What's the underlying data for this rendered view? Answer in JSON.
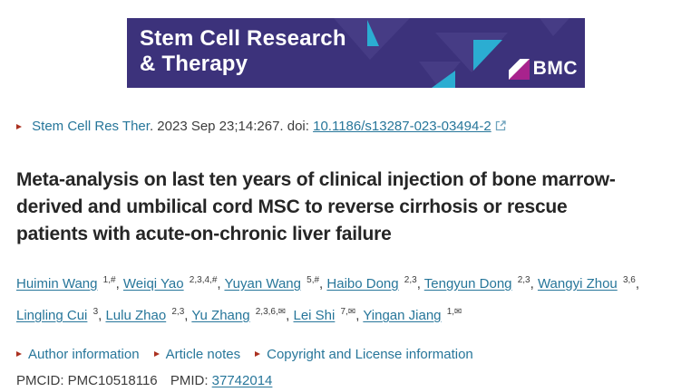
{
  "banner": {
    "journal_title_line1": "Stem Cell Research",
    "journal_title_line2": "& Therapy",
    "bmc_label": "BMC"
  },
  "citation": {
    "journal_link": "Stem Cell Res Ther",
    "meta": ". 2023 Sep 23;14:267. doi: ",
    "doi_link": "10.1186/s13287-023-03494-2"
  },
  "article": {
    "title_lines": [
      "Meta-analysis on last ten years of clinical injection of bone marrow-",
      "derived and umbilical cord MSC to reverse cirrhosis or rescue",
      "patients with acute-on-chronic liver failure"
    ]
  },
  "authors": {
    "separator": ", ",
    "list": [
      {
        "name": "Huimin Wang",
        "sup": "1,#"
      },
      {
        "name": "Weiqi Yao",
        "sup": "2,3,4,#"
      },
      {
        "name": "Yuyan Wang",
        "sup": "5,#"
      },
      {
        "name": "Haibo Dong",
        "sup": "2,3"
      },
      {
        "name": "Tengyun Dong",
        "sup": "2,3"
      },
      {
        "name": "Wangyi Zhou",
        "sup": "3,6",
        "break_after": true
      },
      {
        "name": "Lingling Cui",
        "sup": "3"
      },
      {
        "name": "Lulu Zhao",
        "sup": "2,3"
      },
      {
        "name": "Yu Zhang",
        "sup": "2,3,6,✉",
        "corresponding": true
      },
      {
        "name": "Lei Shi",
        "sup": "7,✉",
        "corresponding": true
      },
      {
        "name": "Yingan Jiang",
        "sup": "1,✉",
        "corresponding": true
      }
    ]
  },
  "info_links": {
    "items": [
      {
        "label": "Author information"
      },
      {
        "label": "Article notes"
      },
      {
        "label": "Copyright and License information"
      }
    ]
  },
  "ids": {
    "pmcid_label": "PMCID:",
    "pmcid_value": "PMC10518116",
    "pmid_label": "PMID:",
    "pmid_value": "37742014"
  },
  "icons": {
    "bullet": "right-triangle-icon",
    "doi_external": "external-link-icon",
    "mail": "envelope-icon"
  },
  "colors": {
    "banner_background": "#3c327b",
    "banner_triangle_teal": "#2badd2",
    "banner_triangle_purple": "#463c85",
    "bmc_magenta": "#a8238d",
    "link": "#27769a",
    "bullet_red": "#ab3120",
    "text": "#3c3c3c",
    "title_text": "#262626"
  }
}
